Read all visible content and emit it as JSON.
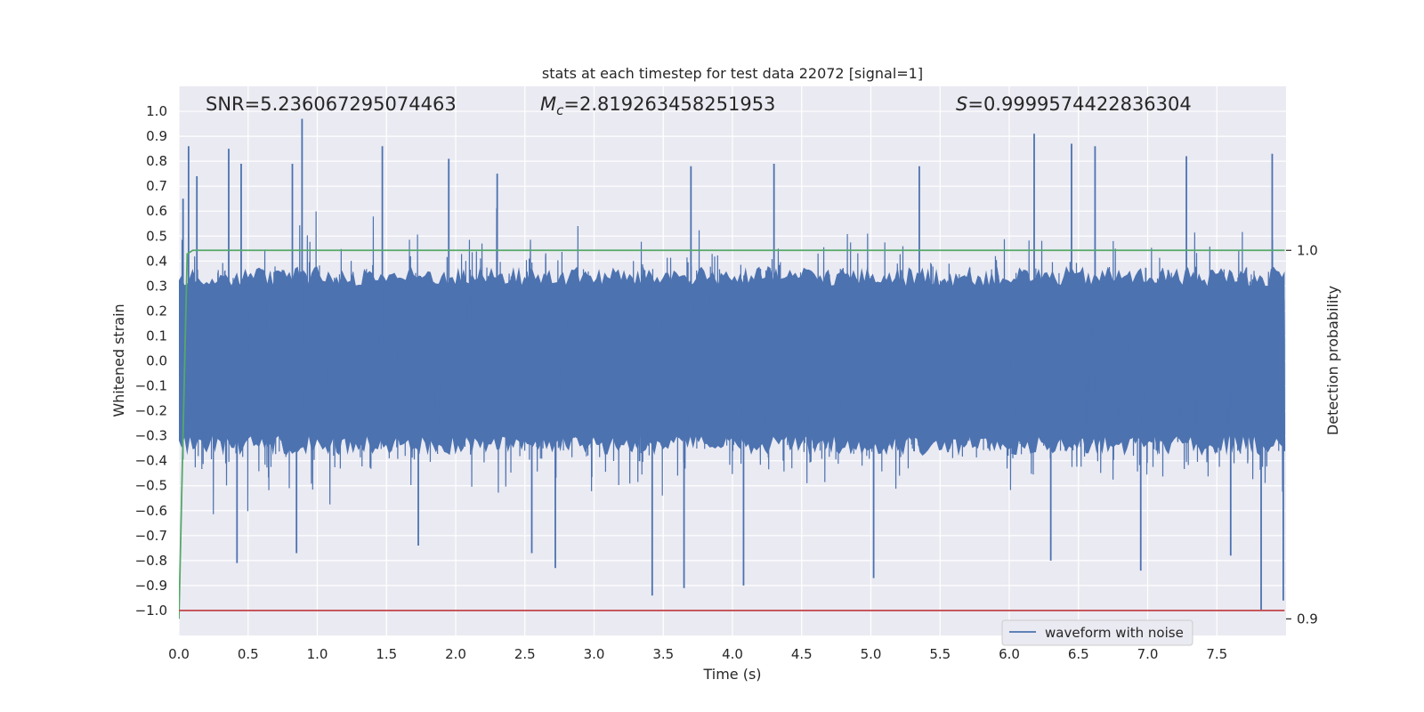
{
  "chart_data": {
    "type": "line",
    "title": "stats at each timestep for test data 22072 [signal=1]",
    "xlabel": "Time (s)",
    "ylabel": "Whitened strain",
    "ylabel_right": "Detection probability",
    "xlim": [
      0.0,
      8.0
    ],
    "ylim": [
      -1.1,
      1.1
    ],
    "ylim_right": [
      0.8955,
      1.0445
    ],
    "xticks": [
      "0.0",
      "0.5",
      "1.0",
      "1.5",
      "2.0",
      "2.5",
      "3.0",
      "3.5",
      "4.0",
      "4.5",
      "5.0",
      "5.5",
      "6.0",
      "6.5",
      "7.0",
      "7.5"
    ],
    "yticks": [
      "1.0",
      "0.9",
      "0.8",
      "0.7",
      "0.6",
      "0.5",
      "0.4",
      "0.3",
      "0.2",
      "0.1",
      "0.0",
      "-0.1",
      "-0.2",
      "-0.3",
      "-0.4",
      "-0.5",
      "-0.6",
      "-0.7",
      "-0.8",
      "-0.9",
      "-1.0"
    ],
    "yticks_right": [
      "1.0",
      "0.9"
    ],
    "grid": true,
    "legend_position": "lower-right",
    "annotations": {
      "snr": "SNR=5.236067295074463",
      "mc_symbol": "M",
      "mc_sub": "c",
      "mc_value": "=2.819263458251953",
      "s_symbol": "S",
      "s_value": "=0.9999574422836304"
    },
    "series": [
      {
        "name": "waveform with noise",
        "axis": "left",
        "color": "#4c72b0",
        "description": "dense whitened strain noise, mostly within ±0.4 with spikes up to about ±1.0",
        "spikes": [
          {
            "x": 0.03,
            "y": 0.65
          },
          {
            "x": 0.07,
            "y": 0.86
          },
          {
            "x": 0.13,
            "y": 0.74
          },
          {
            "x": 0.36,
            "y": 0.85
          },
          {
            "x": 0.45,
            "y": 0.79
          },
          {
            "x": 0.82,
            "y": 0.79
          },
          {
            "x": 0.89,
            "y": 0.97
          },
          {
            "x": 1.47,
            "y": 0.86
          },
          {
            "x": 1.95,
            "y": 0.81
          },
          {
            "x": 2.3,
            "y": 0.75
          },
          {
            "x": 3.7,
            "y": 0.78
          },
          {
            "x": 4.3,
            "y": 0.79
          },
          {
            "x": 5.35,
            "y": 0.78
          },
          {
            "x": 6.18,
            "y": 0.91
          },
          {
            "x": 6.45,
            "y": 0.87
          },
          {
            "x": 6.62,
            "y": 0.86
          },
          {
            "x": 7.28,
            "y": 0.82
          },
          {
            "x": 7.9,
            "y": 0.83
          },
          {
            "x": 0.42,
            "y": -0.81
          },
          {
            "x": 0.85,
            "y": -0.77
          },
          {
            "x": 1.73,
            "y": -0.74
          },
          {
            "x": 2.55,
            "y": -0.77
          },
          {
            "x": 2.72,
            "y": -0.83
          },
          {
            "x": 3.42,
            "y": -0.94
          },
          {
            "x": 3.65,
            "y": -0.91
          },
          {
            "x": 4.08,
            "y": -0.9
          },
          {
            "x": 5.02,
            "y": -0.87
          },
          {
            "x": 6.3,
            "y": -0.8
          },
          {
            "x": 6.95,
            "y": -0.84
          },
          {
            "x": 7.6,
            "y": -0.78
          },
          {
            "x": 7.82,
            "y": -1.0
          },
          {
            "x": 7.98,
            "y": -0.96
          }
        ]
      },
      {
        "name": "",
        "axis": "right",
        "color": "#55a868",
        "x": [
          0.0,
          0.03,
          0.06,
          0.1,
          0.15,
          7.99
        ],
        "y": [
          0.9,
          0.95,
          0.999,
          1.0,
          1.0,
          1.0
        ]
      },
      {
        "name": "",
        "axis": "left",
        "color": "#c44e52",
        "x": [
          0.0,
          7.99
        ],
        "y": [
          -1.0,
          -1.0
        ]
      }
    ]
  }
}
